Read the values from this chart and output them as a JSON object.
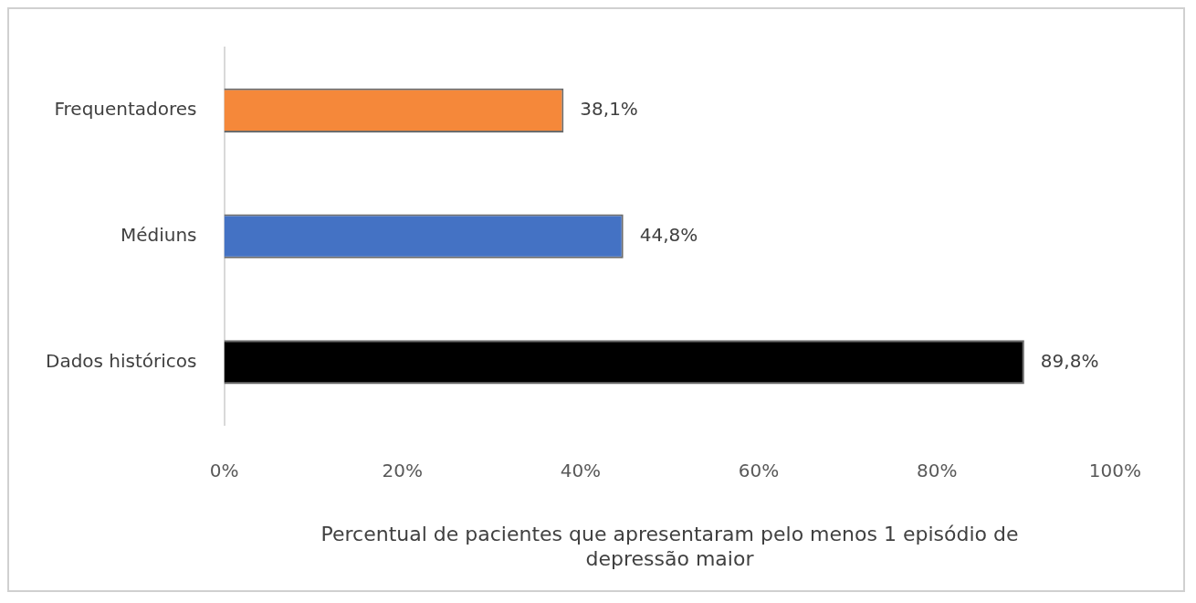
{
  "chart_data": {
    "type": "bar",
    "orientation": "horizontal",
    "categories": [
      "Frequentadores",
      "Médiuns",
      "Dados históricos"
    ],
    "values": [
      38.1,
      44.8,
      89.8
    ],
    "colors": [
      "#f5883a",
      "#4472c4",
      "#000000"
    ],
    "value_labels": [
      "38,1%",
      "44,8%",
      "89,8%"
    ],
    "xlabel": "Percentual de pacientes que apresentaram pelo menos 1 episódio de depressão maior",
    "xlim": [
      0,
      100
    ],
    "xticks": [
      {
        "value": 0,
        "label": "0%"
      },
      {
        "value": 20,
        "label": "20%"
      },
      {
        "value": 40,
        "label": "40%"
      },
      {
        "value": 60,
        "label": "60%"
      },
      {
        "value": 80,
        "label": "80%"
      },
      {
        "value": 100,
        "label": "100%"
      }
    ],
    "grid": false,
    "legend": false
  }
}
